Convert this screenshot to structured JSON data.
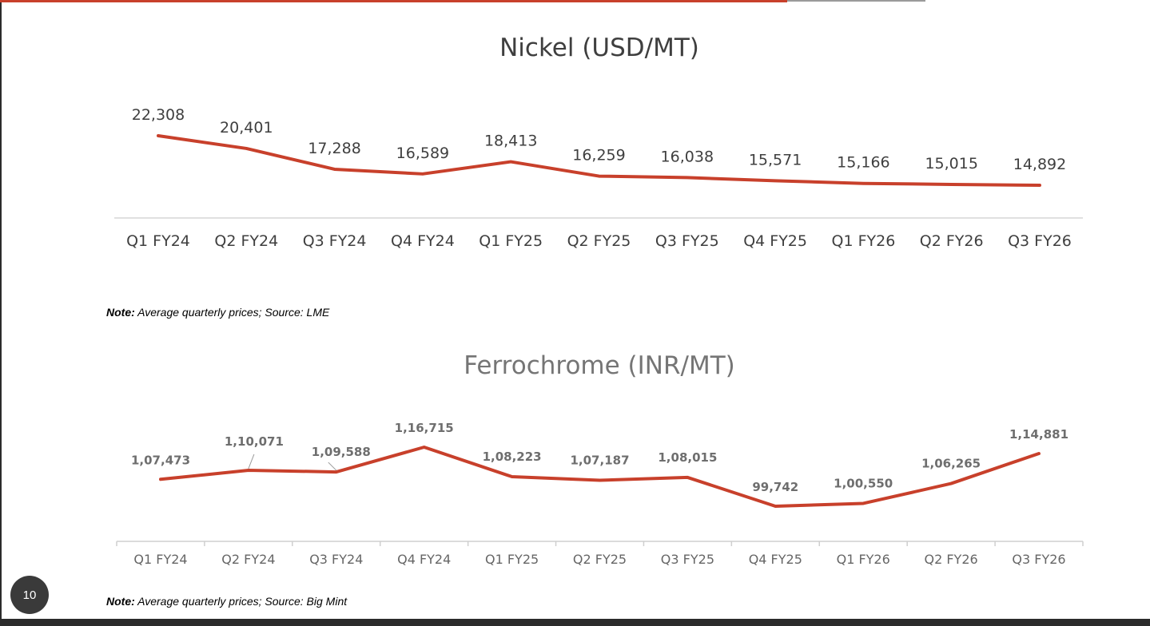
{
  "page_number": "10",
  "colors": {
    "accent": "#c8402b",
    "axis": "#d0d0d0",
    "text_dark": "#3f3f3f",
    "text_gray": "#666666"
  },
  "notes": [
    {
      "label": "Note:",
      "text": " Average quarterly prices; Source: LME"
    },
    {
      "label": "Note:",
      "text": " Average quarterly prices; Source: Big Mint"
    }
  ],
  "chart_data": [
    {
      "type": "line",
      "title": "Nickel (USD/MT)",
      "xlabel": "",
      "ylabel": "",
      "categories": [
        "Q1 FY24",
        "Q2 FY24",
        "Q3 FY24",
        "Q4 FY24",
        "Q1 FY25",
        "Q2 FY25",
        "Q3 FY25",
        "Q4 FY25",
        "Q1 FY26",
        "Q2 FY26",
        "Q3 FY26"
      ],
      "values": [
        22308,
        20401,
        17288,
        16589,
        18413,
        16259,
        16038,
        15571,
        15166,
        15015,
        14892
      ],
      "data_labels": [
        "22,308",
        "20,401",
        "17,288",
        "16,589",
        "18,413",
        "16,259",
        "16,038",
        "15,571",
        "15,166",
        "15,015",
        "14,892"
      ],
      "grid": false,
      "legend": "none"
    },
    {
      "type": "line",
      "title": "Ferrochrome (INR/MT)",
      "xlabel": "",
      "ylabel": "",
      "categories": [
        "Q1 FY24",
        "Q2 FY24",
        "Q3 FY24",
        "Q4 FY24",
        "Q1 FY25",
        "Q2 FY25",
        "Q3 FY25",
        "Q4 FY25",
        "Q1 FY26",
        "Q2 FY26",
        "Q3 FY26"
      ],
      "values": [
        107473,
        110071,
        109588,
        116715,
        108223,
        107187,
        108015,
        99742,
        100550,
        106265,
        114881
      ],
      "data_labels": [
        "1,07,473",
        "1,10,071",
        "1,09,588",
        "1,16,715",
        "1,08,223",
        "1,07,187",
        "1,08,015",
        "99,742",
        "1,00,550",
        "1,06,265",
        "1,14,881"
      ],
      "grid": false,
      "legend": "none"
    }
  ]
}
